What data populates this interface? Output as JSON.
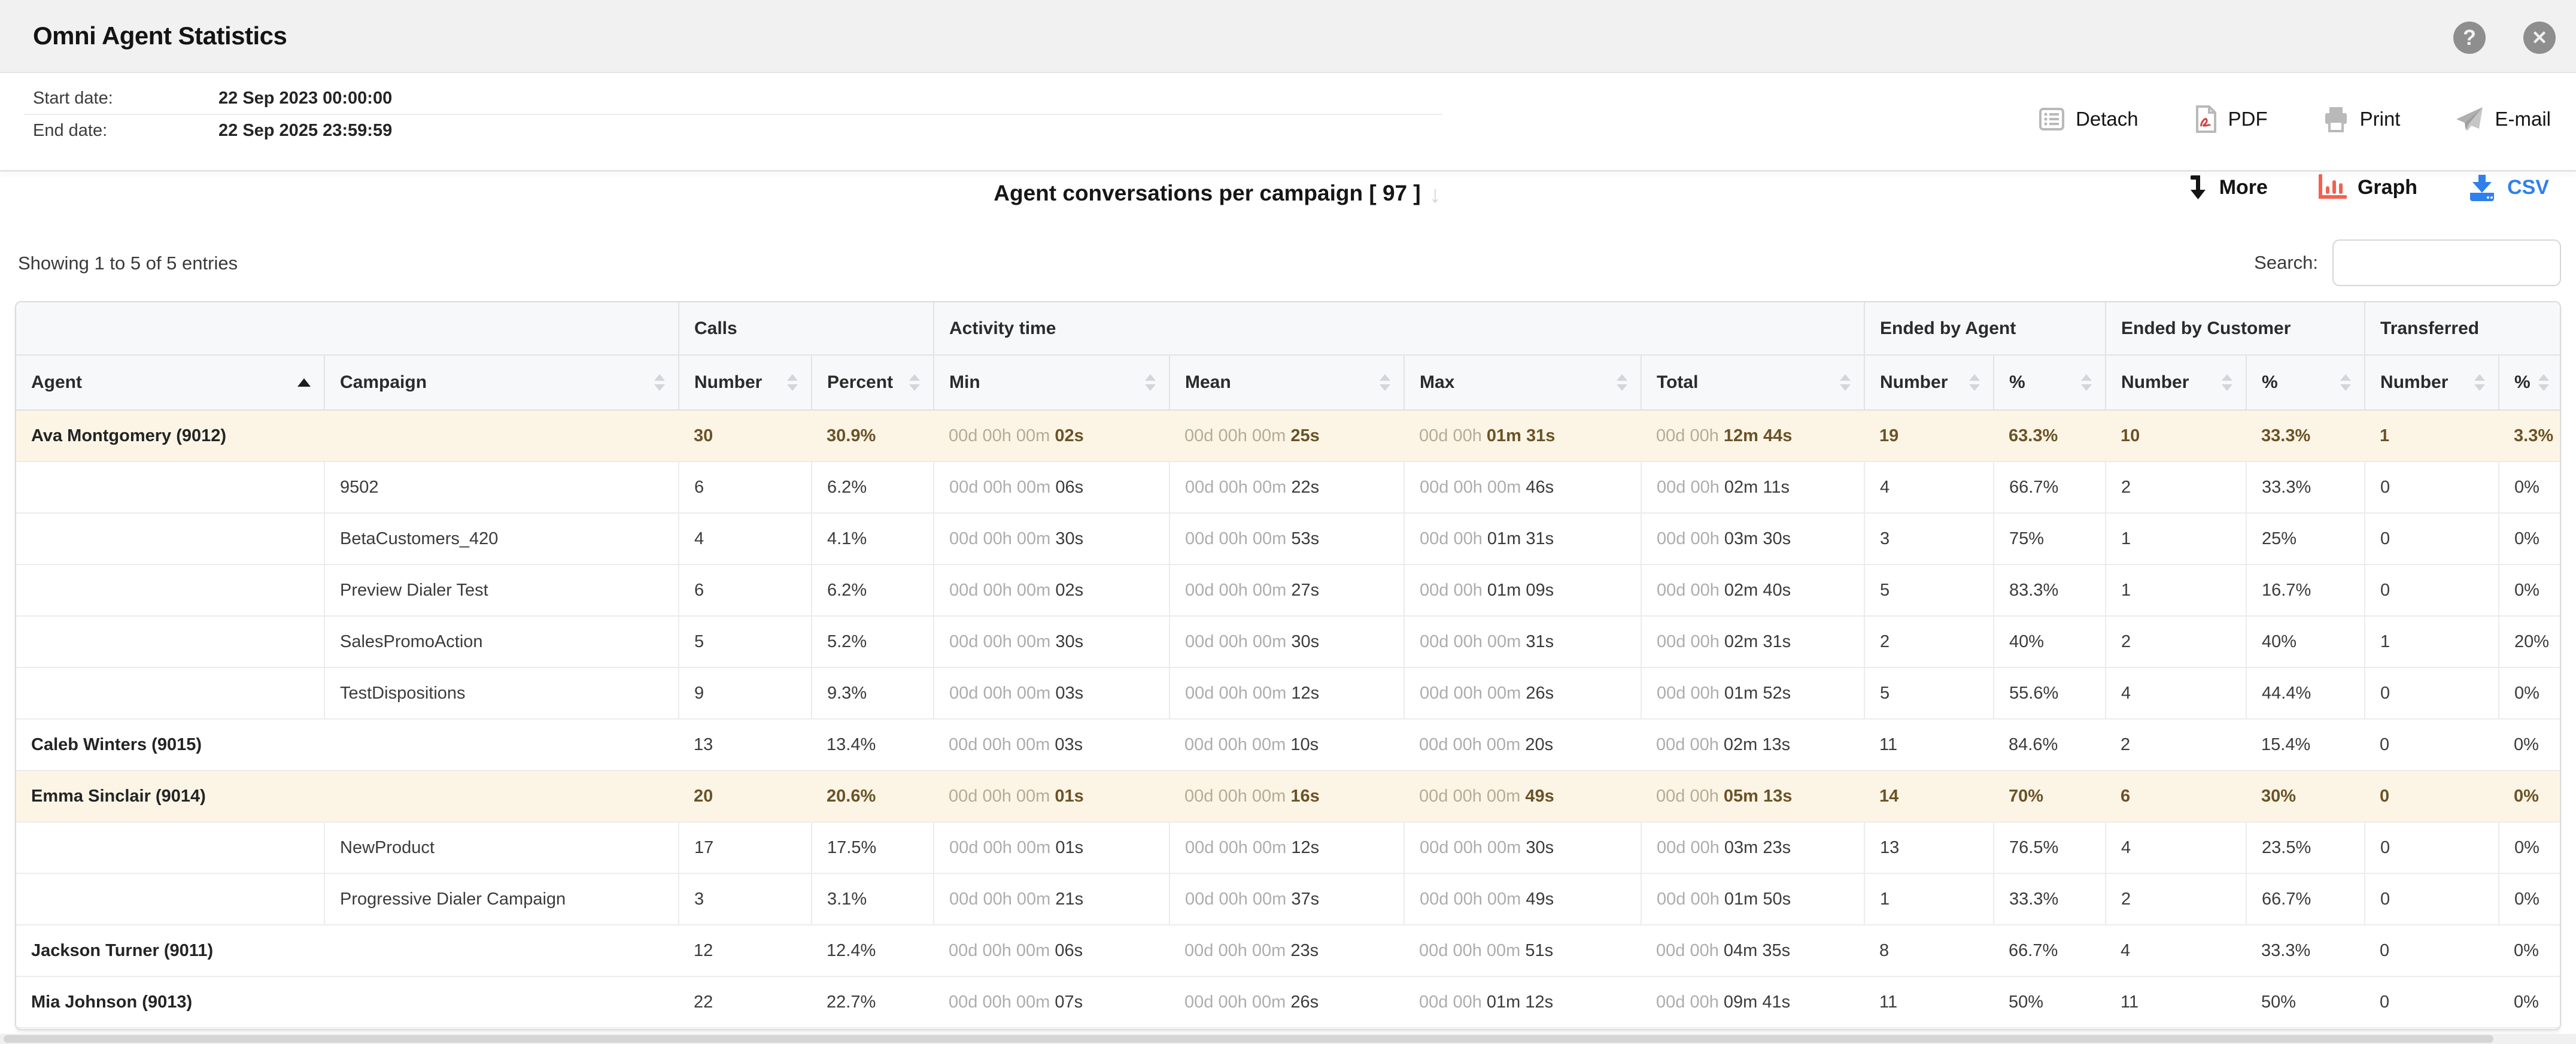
{
  "app": {
    "title": "Omni Agent Statistics"
  },
  "toolbar": {
    "start_label": "Start date:",
    "start_value": "22 Sep 2023 00:00:00",
    "end_label": "End date:",
    "end_value": "22 Sep 2025 23:59:59",
    "actions": [
      {
        "id": "detach",
        "label": "Detach"
      },
      {
        "id": "pdf",
        "label": "PDF"
      },
      {
        "id": "print",
        "label": "Print"
      },
      {
        "id": "email",
        "label": "E-mail"
      }
    ]
  },
  "report": {
    "title": "Agent conversations per campaign",
    "count_suffix": "[ 97 ]",
    "actions": [
      {
        "id": "more",
        "label": "More"
      },
      {
        "id": "graph",
        "label": "Graph"
      },
      {
        "id": "csv",
        "label": "CSV"
      }
    ],
    "showing": "Showing 1 to 5 of 5 entries",
    "search_label": "Search:",
    "search_value": ""
  },
  "table": {
    "groups": [
      {
        "label": "",
        "span": 2
      },
      {
        "label": "Calls",
        "span": 2
      },
      {
        "label": "Activity time",
        "span": 4
      },
      {
        "label": "Ended by Agent",
        "span": 2
      },
      {
        "label": "Ended by Customer",
        "span": 2
      },
      {
        "label": "Transferred",
        "span": 2
      }
    ],
    "columns": [
      {
        "label": "Agent",
        "sort": "asc"
      },
      {
        "label": "Campaign",
        "sort": "both"
      },
      {
        "label": "Number",
        "sort": "both"
      },
      {
        "label": "Percent",
        "sort": "both"
      },
      {
        "label": "Min",
        "sort": "both"
      },
      {
        "label": "Mean",
        "sort": "both"
      },
      {
        "label": "Max",
        "sort": "both"
      },
      {
        "label": "Total",
        "sort": "both"
      },
      {
        "label": "Number",
        "sort": "both"
      },
      {
        "label": "%",
        "sort": "both"
      },
      {
        "label": "Number",
        "sort": "both"
      },
      {
        "label": "%",
        "sort": "both"
      },
      {
        "label": "Number",
        "sort": "both"
      },
      {
        "label": "%",
        "sort": "both"
      }
    ],
    "rows": [
      {
        "kind": "agent",
        "highlight": true,
        "cells": [
          "Ava Montgomery (9012)",
          "",
          "30",
          "30.9%",
          {
            "dim": "00d 00h 00m",
            "strong": "02s"
          },
          {
            "dim": "00d 00h 00m",
            "strong": "25s"
          },
          {
            "dim": "00d 00h",
            "strong": "01m 31s"
          },
          {
            "dim": "00d 00h",
            "strong": "12m 44s"
          },
          "19",
          "63.3%",
          "10",
          "33.3%",
          "1",
          "3.3%"
        ]
      },
      {
        "kind": "campaign",
        "highlight": false,
        "cells": [
          "",
          "9502",
          "6",
          "6.2%",
          {
            "dim": "00d 00h 00m",
            "strong": "06s"
          },
          {
            "dim": "00d 00h 00m",
            "strong": "22s"
          },
          {
            "dim": "00d 00h 00m",
            "strong": "46s"
          },
          {
            "dim": "00d 00h",
            "strong": "02m 11s"
          },
          "4",
          "66.7%",
          "2",
          "33.3%",
          "0",
          "0%"
        ]
      },
      {
        "kind": "campaign",
        "highlight": false,
        "cells": [
          "",
          "BetaCustomers_420",
          "4",
          "4.1%",
          {
            "dim": "00d 00h 00m",
            "strong": "30s"
          },
          {
            "dim": "00d 00h 00m",
            "strong": "53s"
          },
          {
            "dim": "00d 00h",
            "strong": "01m 31s"
          },
          {
            "dim": "00d 00h",
            "strong": "03m 30s"
          },
          "3",
          "75%",
          "1",
          "25%",
          "0",
          "0%"
        ]
      },
      {
        "kind": "campaign",
        "highlight": false,
        "cells": [
          "",
          "Preview Dialer Test",
          "6",
          "6.2%",
          {
            "dim": "00d 00h 00m",
            "strong": "02s"
          },
          {
            "dim": "00d 00h 00m",
            "strong": "27s"
          },
          {
            "dim": "00d 00h",
            "strong": "01m 09s"
          },
          {
            "dim": "00d 00h",
            "strong": "02m 40s"
          },
          "5",
          "83.3%",
          "1",
          "16.7%",
          "0",
          "0%"
        ]
      },
      {
        "kind": "campaign",
        "highlight": false,
        "cells": [
          "",
          "SalesPromoAction",
          "5",
          "5.2%",
          {
            "dim": "00d 00h 00m",
            "strong": "30s"
          },
          {
            "dim": "00d 00h 00m",
            "strong": "30s"
          },
          {
            "dim": "00d 00h 00m",
            "strong": "31s"
          },
          {
            "dim": "00d 00h",
            "strong": "02m 31s"
          },
          "2",
          "40%",
          "2",
          "40%",
          "1",
          "20%"
        ]
      },
      {
        "kind": "campaign",
        "highlight": false,
        "cells": [
          "",
          "TestDispositions",
          "9",
          "9.3%",
          {
            "dim": "00d 00h 00m",
            "strong": "03s"
          },
          {
            "dim": "00d 00h 00m",
            "strong": "12s"
          },
          {
            "dim": "00d 00h 00m",
            "strong": "26s"
          },
          {
            "dim": "00d 00h",
            "strong": "01m 52s"
          },
          "5",
          "55.6%",
          "4",
          "44.4%",
          "0",
          "0%"
        ]
      },
      {
        "kind": "agent",
        "highlight": false,
        "cells": [
          "Caleb Winters (9015)",
          "",
          "13",
          "13.4%",
          {
            "dim": "00d 00h 00m",
            "strong": "03s"
          },
          {
            "dim": "00d 00h 00m",
            "strong": "10s"
          },
          {
            "dim": "00d 00h 00m",
            "strong": "20s"
          },
          {
            "dim": "00d 00h",
            "strong": "02m 13s"
          },
          "11",
          "84.6%",
          "2",
          "15.4%",
          "0",
          "0%"
        ]
      },
      {
        "kind": "agent",
        "highlight": true,
        "cells": [
          "Emma Sinclair (9014)",
          "",
          "20",
          "20.6%",
          {
            "dim": "00d 00h 00m",
            "strong": "01s"
          },
          {
            "dim": "00d 00h 00m",
            "strong": "16s"
          },
          {
            "dim": "00d 00h 00m",
            "strong": "49s"
          },
          {
            "dim": "00d 00h",
            "strong": "05m 13s"
          },
          "14",
          "70%",
          "6",
          "30%",
          "0",
          "0%"
        ]
      },
      {
        "kind": "campaign",
        "highlight": false,
        "cells": [
          "",
          "NewProduct",
          "17",
          "17.5%",
          {
            "dim": "00d 00h 00m",
            "strong": "01s"
          },
          {
            "dim": "00d 00h 00m",
            "strong": "12s"
          },
          {
            "dim": "00d 00h 00m",
            "strong": "30s"
          },
          {
            "dim": "00d 00h",
            "strong": "03m 23s"
          },
          "13",
          "76.5%",
          "4",
          "23.5%",
          "0",
          "0%"
        ]
      },
      {
        "kind": "campaign",
        "highlight": false,
        "cells": [
          "",
          "Progressive Dialer Campaign",
          "3",
          "3.1%",
          {
            "dim": "00d 00h 00m",
            "strong": "21s"
          },
          {
            "dim": "00d 00h 00m",
            "strong": "37s"
          },
          {
            "dim": "00d 00h 00m",
            "strong": "49s"
          },
          {
            "dim": "00d 00h",
            "strong": "01m 50s"
          },
          "1",
          "33.3%",
          "2",
          "66.7%",
          "0",
          "0%"
        ]
      },
      {
        "kind": "agent",
        "highlight": false,
        "cells": [
          "Jackson Turner (9011)",
          "",
          "12",
          "12.4%",
          {
            "dim": "00d 00h 00m",
            "strong": "06s"
          },
          {
            "dim": "00d 00h 00m",
            "strong": "23s"
          },
          {
            "dim": "00d 00h 00m",
            "strong": "51s"
          },
          {
            "dim": "00d 00h",
            "strong": "04m 35s"
          },
          "8",
          "66.7%",
          "4",
          "33.3%",
          "0",
          "0%"
        ]
      },
      {
        "kind": "agent",
        "highlight": false,
        "cells": [
          "Mia Johnson (9013)",
          "",
          "22",
          "22.7%",
          {
            "dim": "00d 00h 00m",
            "strong": "07s"
          },
          {
            "dim": "00d 00h 00m",
            "strong": "26s"
          },
          {
            "dim": "00d 00h",
            "strong": "01m 12s"
          },
          {
            "dim": "00d 00h",
            "strong": "09m 41s"
          },
          "11",
          "50%",
          "11",
          "50%",
          "0",
          "0%"
        ]
      }
    ]
  },
  "icons": {
    "help": "?",
    "close": "✕",
    "title_dropdown": "↓"
  },
  "colors": {
    "highlight_bg": "#fcf5e6",
    "agent_brown": "#6b5327",
    "csv_blue": "#2f80ed",
    "graph_red": "#f4614f",
    "topbar_bg": "#f1f1f2"
  }
}
